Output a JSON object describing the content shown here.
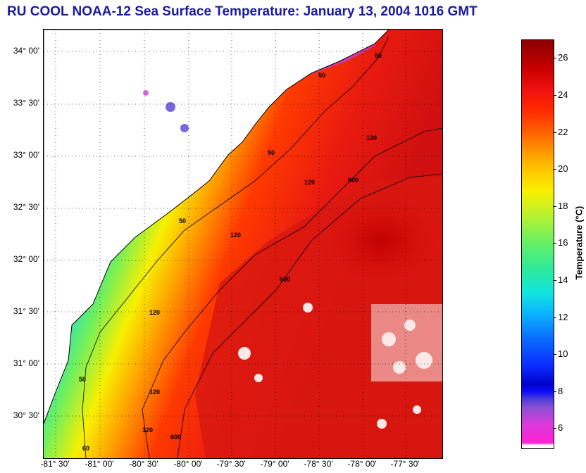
{
  "title": "RU COOL  NOAA-12  Sea Surface Temperature:  January 13, 2004 1016 GMT",
  "map": {
    "latitude_labels": [
      "34° 00'",
      "33° 30'",
      "33° 00'",
      "32° 30'",
      "32° 00'",
      "31° 30'",
      "31° 00'",
      "30° 30'"
    ],
    "longitude_labels": [
      "-81° 30'",
      "-81° 00'",
      "-80° 30'",
      "-80° 00'",
      "-79° 30'",
      "-79° 00'",
      "-78° 30'",
      "-78° 00'",
      "-77° 30'"
    ],
    "contour_labels": [
      "50",
      "50",
      "50",
      "50",
      "50",
      "60",
      "120",
      "120",
      "120",
      "120",
      "120",
      "120",
      "600",
      "600",
      "600"
    ]
  },
  "colorbar": {
    "title": "Temperature (°C)",
    "tick_labels": [
      "26",
      "24",
      "22",
      "20",
      "18",
      "16",
      "14",
      "12",
      "10",
      "8",
      "6"
    ],
    "range": [
      5,
      27
    ],
    "colors": {
      "cold": "#ff22d4",
      "mid": "#f8f000",
      "warm": "#8a0000"
    }
  }
}
